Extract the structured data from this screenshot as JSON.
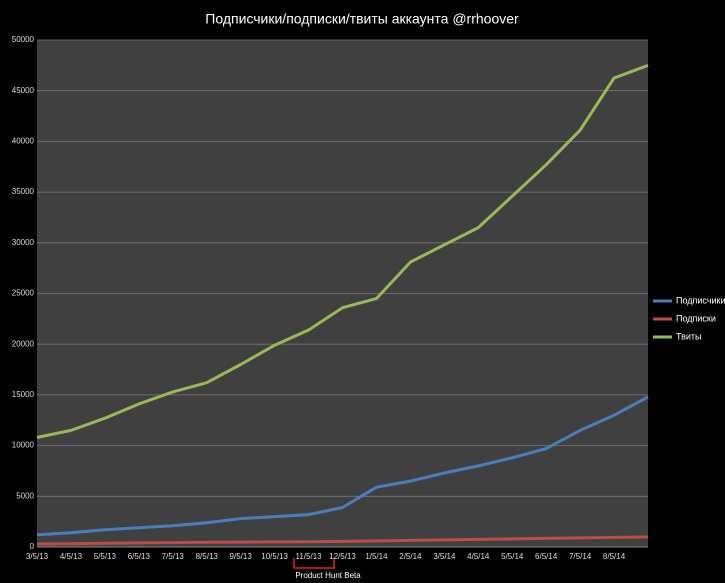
{
  "chart_data": {
    "type": "line",
    "title": "Подписчики/подписки/твиты аккаунта @rrhoover",
    "categories": [
      "3/5/13",
      "4/5/13",
      "5/5/13",
      "6/5/13",
      "7/5/13",
      "8/5/13",
      "9/5/13",
      "10/5/13",
      "11/5/13",
      "12/5/13",
      "1/5/14",
      "2/5/14",
      "3/5/14",
      "4/5/14",
      "5/5/14",
      "6/5/14",
      "7/5/14",
      "8/5/14",
      null
    ],
    "series": [
      {
        "name": "Подписчики",
        "color": "#4a7ebb",
        "values": [
          1200,
          1400,
          1700,
          1900,
          2100,
          2400,
          2800,
          3000,
          3200,
          3900,
          5900,
          6500,
          7300,
          8000,
          8800,
          9700,
          11500,
          13000,
          14800
        ]
      },
      {
        "name": "Подписки",
        "color": "#be4b48",
        "values": [
          300,
          330,
          360,
          400,
          430,
          460,
          480,
          500,
          520,
          550,
          600,
          650,
          700,
          750,
          800,
          850,
          900,
          950,
          1000
        ]
      },
      {
        "name": "Твиты",
        "color": "#98b954",
        "values": [
          10800,
          11500,
          12700,
          14100,
          15300,
          16200,
          18000,
          19900,
          21400,
          23600,
          24500,
          28100,
          29800,
          31500,
          34600,
          37700,
          41100,
          46250,
          47500
        ]
      }
    ],
    "ylim": [
      0,
      50000
    ],
    "yticks": [
      0,
      5000,
      10000,
      15000,
      20000,
      25000,
      30000,
      35000,
      40000,
      45000,
      50000
    ],
    "grid": true,
    "legend": "right",
    "annotation": "Product Hunt Beta"
  }
}
